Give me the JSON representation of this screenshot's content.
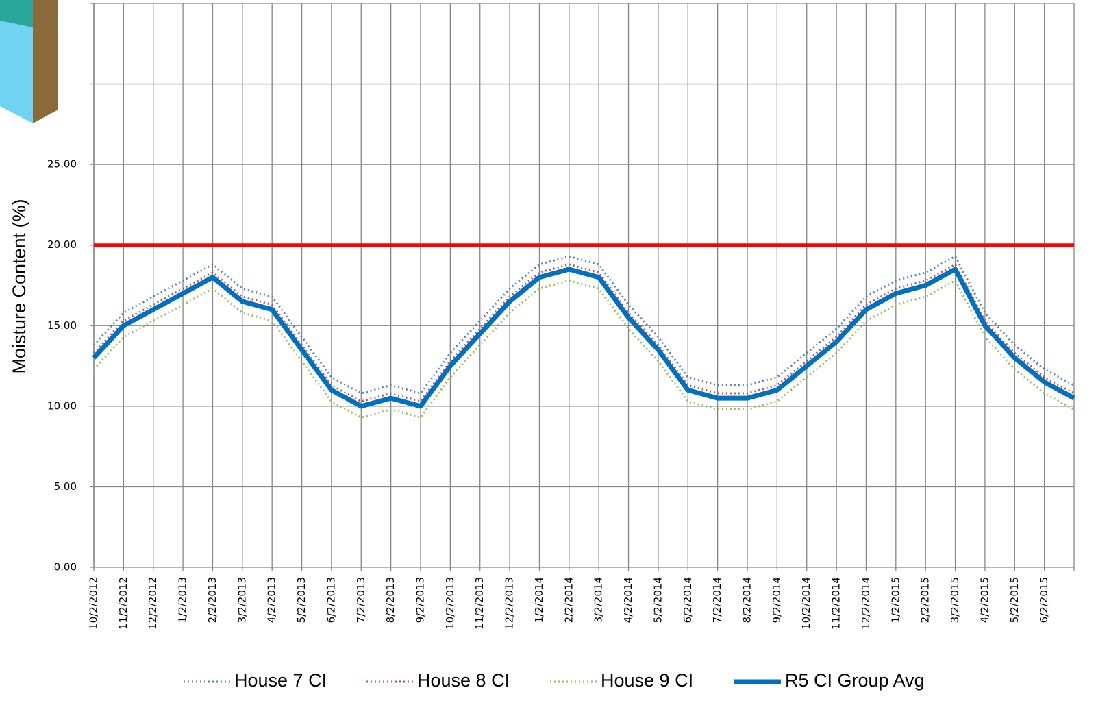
{
  "chart_data": {
    "type": "line",
    "y_axis_label": "Moisture Content  (%)",
    "categories": [
      "10/2/2012",
      "11/2/2012",
      "12/2/2012",
      "1/2/2013",
      "2/2/2013",
      "3/2/2013",
      "4/2/2013",
      "5/2/2013",
      "6/2/2013",
      "7/2/2013",
      "8/2/2013",
      "9/2/2013",
      "10/2/2013",
      "11/2/2013",
      "12/2/2013",
      "1/2/2014",
      "2/2/2014",
      "3/2/2014",
      "4/2/2014",
      "5/2/2014",
      "6/2/2014",
      "7/2/2014",
      "8/2/2014",
      "9/2/2014",
      "10/2/2014",
      "11/2/2014",
      "12/2/2014",
      "1/2/2015",
      "2/2/2015",
      "3/2/2015",
      "4/2/2015",
      "5/2/2015",
      "6/2/2015",
      null
    ],
    "series": [
      {
        "name": "House 7 CI",
        "color": "#4f81bd",
        "style": "dotted",
        "values": [
          13.8,
          15.8,
          16.8,
          17.8,
          18.8,
          17.3,
          16.8,
          14.3,
          11.8,
          10.8,
          11.3,
          10.8,
          13.3,
          15.3,
          17.3,
          18.8,
          19.3,
          18.8,
          16.3,
          14.3,
          11.8,
          11.3,
          11.3,
          11.8,
          13.3,
          14.8,
          16.8,
          17.8,
          18.3,
          19.3,
          15.8,
          13.8,
          12.3,
          11.3
        ]
      },
      {
        "name": "House 8 CI",
        "color": "#c0504d",
        "style": "dotted",
        "values": [
          13.3,
          15.3,
          16.3,
          17.3,
          18.3,
          16.8,
          16.3,
          13.8,
          11.3,
          10.3,
          10.8,
          10.3,
          12.8,
          14.8,
          16.8,
          18.3,
          18.8,
          18.3,
          15.8,
          13.8,
          11.3,
          10.8,
          10.8,
          11.3,
          12.8,
          14.3,
          16.3,
          17.3,
          17.8,
          18.8,
          15.3,
          13.3,
          11.8,
          10.8
        ]
      },
      {
        "name": "House 9 CI",
        "color": "#9bbb59",
        "style": "dotted",
        "values": [
          12.3,
          14.3,
          15.3,
          16.3,
          17.3,
          15.8,
          15.3,
          12.8,
          10.3,
          9.3,
          9.8,
          9.3,
          11.8,
          13.8,
          15.8,
          17.3,
          17.8,
          17.3,
          14.8,
          12.8,
          10.3,
          9.8,
          9.8,
          10.3,
          11.8,
          13.3,
          15.3,
          16.3,
          16.8,
          17.8,
          14.3,
          12.3,
          10.8,
          9.8
        ]
      },
      {
        "name": "R5 CI Group Avg",
        "color": "#0070c0",
        "style": "solid",
        "values": [
          13,
          15,
          16,
          17,
          18,
          16.5,
          16,
          13.5,
          11,
          10,
          10.5,
          10,
          12.5,
          14.5,
          16.5,
          18,
          18.5,
          18,
          15.5,
          13.5,
          11,
          10.5,
          10.5,
          11,
          12.5,
          14,
          16,
          17,
          17.5,
          18.5,
          15,
          13,
          11.5,
          10.5
        ]
      }
    ],
    "threshold": {
      "value": 20,
      "color": "#ff0000"
    },
    "ylim": [
      0,
      35
    ],
    "yticks": [
      {
        "value": 0,
        "label": "0.00"
      },
      {
        "value": 5,
        "label": "5.00"
      },
      {
        "value": 10,
        "label": "10.00"
      },
      {
        "value": 15,
        "label": "15.00"
      },
      {
        "value": 20,
        "label": "20.00"
      },
      {
        "value": 25,
        "label": "25.00"
      }
    ],
    "ygrid": [
      30,
      35
    ],
    "grid": true,
    "legend": "bottom"
  }
}
